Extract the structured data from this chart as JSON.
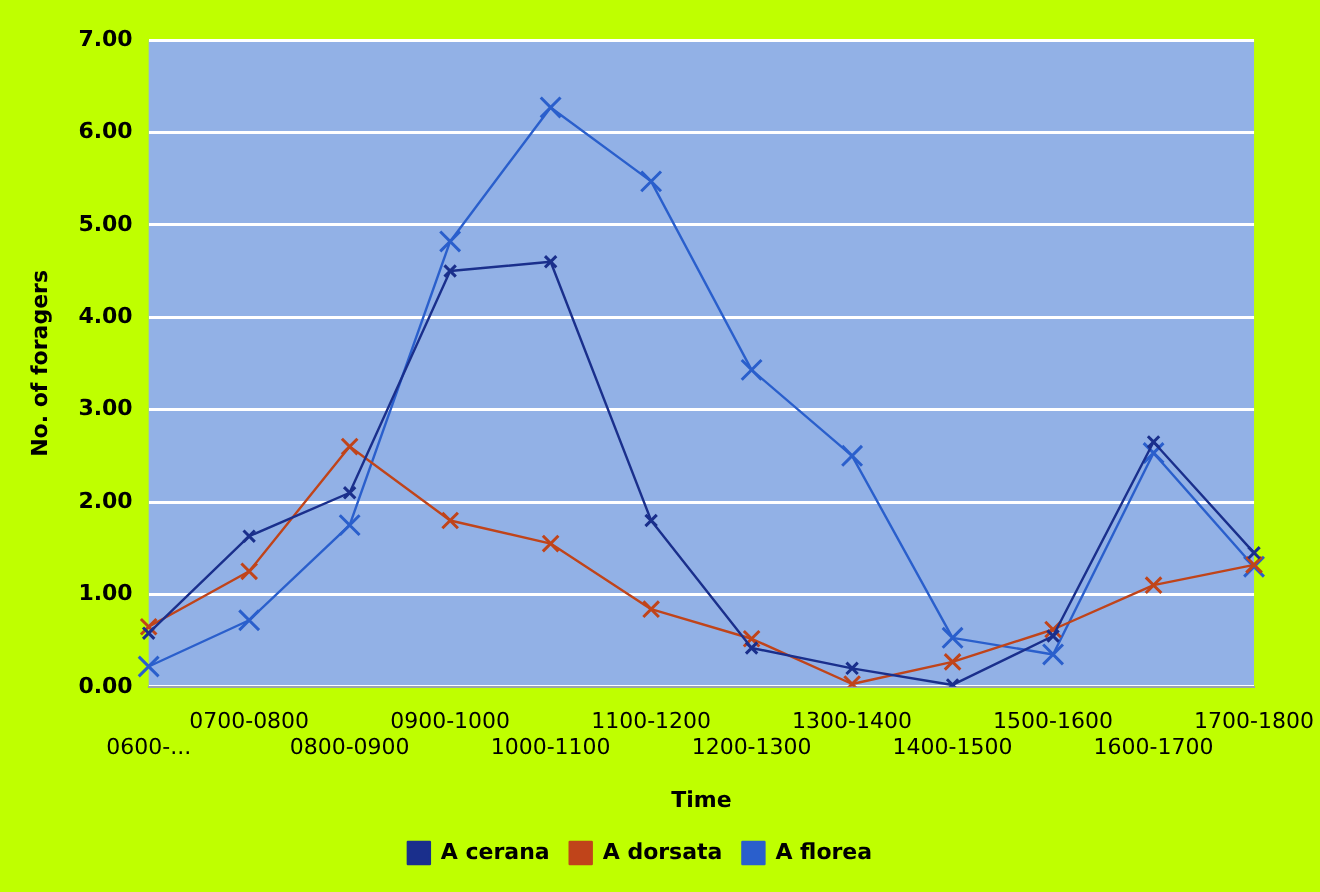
{
  "chart_data": {
    "type": "line",
    "xlabel": "Time",
    "ylabel": "No. of foragers",
    "categories": [
      "0600-...",
      "0700-0800",
      "0800-0900",
      "0900-1000",
      "1000-1100",
      "1100-1200",
      "1200-1300",
      "1300-1400",
      "1400-1500",
      "1500-1600",
      "1600-1700",
      "1700-1800"
    ],
    "series": [
      {
        "name": "A cerana",
        "color": "#1a2f8c",
        "values": [
          0.58,
          1.63,
          2.1,
          4.5,
          4.6,
          1.8,
          0.42,
          0.2,
          0.02,
          0.55,
          2.65,
          1.45
        ]
      },
      {
        "name": "A dorsata",
        "color": "#c0441a",
        "values": [
          0.65,
          1.25,
          2.6,
          1.8,
          1.55,
          0.84,
          0.52,
          0.03,
          0.27,
          0.62,
          1.1,
          1.32
        ]
      },
      {
        "name": "A florea",
        "color": "#2a5fcc",
        "values": [
          0.22,
          0.72,
          1.75,
          4.82,
          6.27,
          5.47,
          3.43,
          2.5,
          0.53,
          0.35,
          2.53,
          1.3
        ]
      }
    ],
    "ylim": [
      0,
      7
    ],
    "yticks": [
      {
        "value": 0,
        "label": "0.00"
      },
      {
        "value": 1,
        "label": "1.00"
      },
      {
        "value": 2,
        "label": "2.00"
      },
      {
        "value": 3,
        "label": "3.00"
      },
      {
        "value": 4,
        "label": "4.00"
      },
      {
        "value": 5,
        "label": "5.00"
      },
      {
        "value": 6,
        "label": "6.00"
      },
      {
        "value": 7,
        "label": "7.00"
      }
    ],
    "grid": "y",
    "legend": "bottom",
    "marker": "cross",
    "line_style": "solid"
  }
}
